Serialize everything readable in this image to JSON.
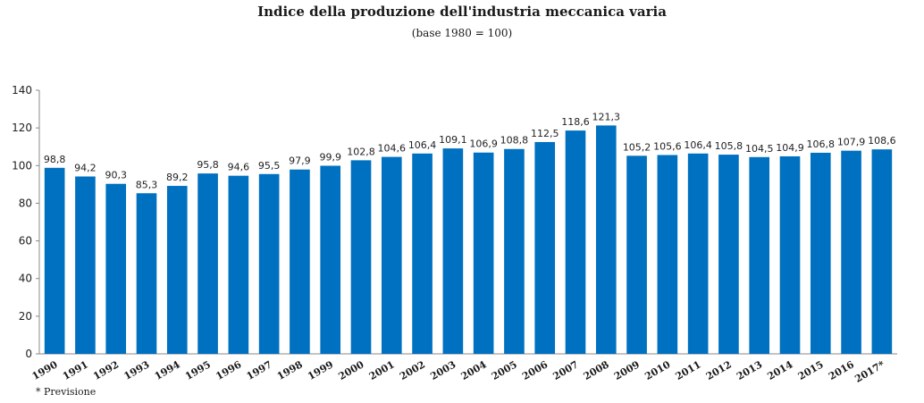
{
  "chart_data": {
    "type": "bar",
    "title": "Indice della produzione dell'industria meccanica varia",
    "subtitle": "(base 1980 = 100)",
    "categories": [
      "1990",
      "1991",
      "1992",
      "1993",
      "1994",
      "1995",
      "1996",
      "1997",
      "1998",
      "1999",
      "2000",
      "2001",
      "2002",
      "2003",
      "2004",
      "2005",
      "2006",
      "2007",
      "2008",
      "2009",
      "2010",
      "2011",
      "2012",
      "2013",
      "2014",
      "2015",
      "2016",
      "2017*"
    ],
    "values": [
      98.8,
      94.2,
      90.3,
      85.3,
      89.2,
      95.8,
      94.6,
      95.5,
      97.9,
      99.9,
      102.8,
      104.6,
      106.4,
      109.1,
      106.9,
      108.8,
      112.5,
      118.6,
      121.3,
      105.2,
      105.6,
      106.4,
      105.8,
      104.5,
      104.9,
      106.8,
      107.9,
      108.6
    ],
    "value_labels": [
      "98,8",
      "94,2",
      "90,3",
      "85,3",
      "89,2",
      "95,8",
      "94,6",
      "95,5",
      "97,9",
      "99,9",
      "102,8",
      "104,6",
      "106,4",
      "109,1",
      "106,9",
      "108,8",
      "112,5",
      "118,6",
      "121,3",
      "105,2",
      "105,6",
      "106,4",
      "105,8",
      "104,5",
      "104,9",
      "106,8",
      "107,9",
      "108,6"
    ],
    "ylim": [
      0,
      140
    ],
    "yticks": [
      0,
      20,
      40,
      60,
      80,
      100,
      120,
      140
    ],
    "xlabel": "",
    "ylabel": "",
    "grid": false,
    "bar_color": "#0070C0",
    "footnote": "* Previsione"
  }
}
